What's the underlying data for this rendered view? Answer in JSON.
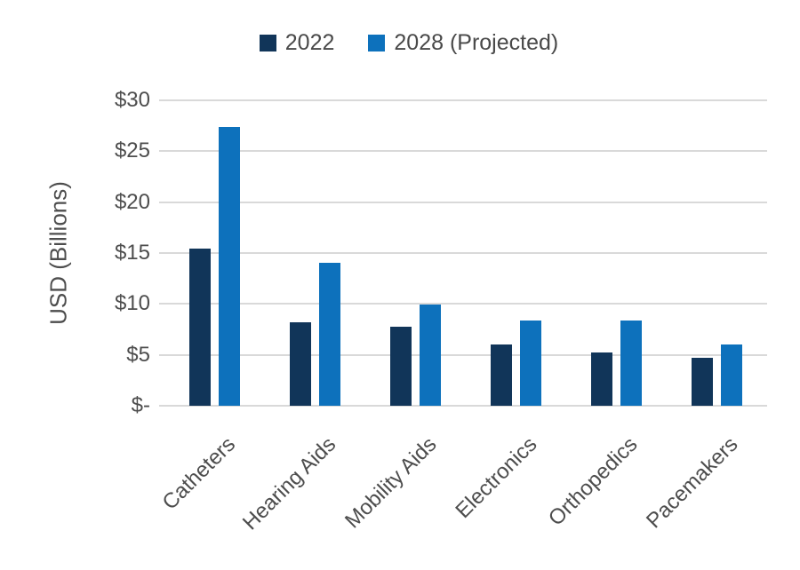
{
  "chart_data": {
    "type": "bar",
    "title": "",
    "ylabel": "USD (Billions)",
    "ylim": [
      0,
      30
    ],
    "grid": true,
    "legend_position": "top",
    "categories": [
      "Catheters",
      "Hearing Aids",
      "Mobility Aids",
      "Electronics",
      "Orthopedics",
      "Pacemakers"
    ],
    "series": [
      {
        "name": "2022",
        "color": "#113559",
        "values": [
          15.4,
          8.2,
          7.8,
          6.0,
          5.2,
          4.7
        ]
      },
      {
        "name": "2028 (Projected)",
        "color": "#0d71bc",
        "values": [
          27.4,
          14.0,
          9.9,
          8.4,
          8.4,
          6.0
        ]
      }
    ],
    "yticks": [
      {
        "value": 0,
        "label": "$-"
      },
      {
        "value": 5,
        "label": "$5"
      },
      {
        "value": 10,
        "label": "$10"
      },
      {
        "value": 15,
        "label": "$15"
      },
      {
        "value": 20,
        "label": "$20"
      },
      {
        "value": 25,
        "label": "$25"
      },
      {
        "value": 30,
        "label": "$30"
      }
    ],
    "gridline_color": "#d9d9d9",
    "text_color": "#4d4d4d",
    "background_color": "#ffffff"
  }
}
